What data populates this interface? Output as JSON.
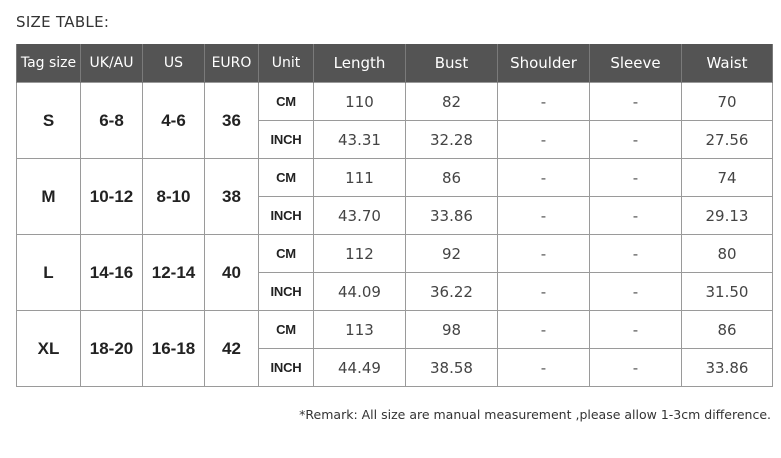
{
  "page": {
    "title": "SIZE TABLE:",
    "remark": "*Remark: All size are manual measurement ,please allow 1-3cm difference."
  },
  "colors": {
    "header_bg": "#545454",
    "header_text": "#ffffff",
    "grid_line": "#9a9a9a",
    "body_text": "#333333"
  },
  "table": {
    "headers": [
      "Tag size",
      "UK/AU",
      "US",
      "EURO",
      "Unit",
      "Length",
      "Bust",
      "Shoulder",
      "Sleeve",
      "Waist"
    ],
    "sizes": [
      {
        "tag": "S",
        "uk_au": "6-8",
        "us": "4-6",
        "euro": "36",
        "rows": [
          {
            "unit": "CM",
            "length": "110",
            "bust": "82",
            "shoulder": "-",
            "sleeve": "-",
            "waist": "70"
          },
          {
            "unit": "INCH",
            "length": "43.31",
            "bust": "32.28",
            "shoulder": "-",
            "sleeve": "-",
            "waist": "27.56"
          }
        ]
      },
      {
        "tag": "M",
        "uk_au": "10-12",
        "us": "8-10",
        "euro": "38",
        "rows": [
          {
            "unit": "CM",
            "length": "111",
            "bust": "86",
            "shoulder": "-",
            "sleeve": "-",
            "waist": "74"
          },
          {
            "unit": "INCH",
            "length": "43.70",
            "bust": "33.86",
            "shoulder": "-",
            "sleeve": "-",
            "waist": "29.13"
          }
        ]
      },
      {
        "tag": "L",
        "uk_au": "14-16",
        "us": "12-14",
        "euro": "40",
        "rows": [
          {
            "unit": "CM",
            "length": "112",
            "bust": "92",
            "shoulder": "-",
            "sleeve": "-",
            "waist": "80"
          },
          {
            "unit": "INCH",
            "length": "44.09",
            "bust": "36.22",
            "shoulder": "-",
            "sleeve": "-",
            "waist": "31.50"
          }
        ]
      },
      {
        "tag": "XL",
        "uk_au": "18-20",
        "us": "16-18",
        "euro": "42",
        "rows": [
          {
            "unit": "CM",
            "length": "113",
            "bust": "98",
            "shoulder": "-",
            "sleeve": "-",
            "waist": "86"
          },
          {
            "unit": "INCH",
            "length": "44.49",
            "bust": "38.58",
            "shoulder": "-",
            "sleeve": "-",
            "waist": "33.86"
          }
        ]
      }
    ]
  }
}
